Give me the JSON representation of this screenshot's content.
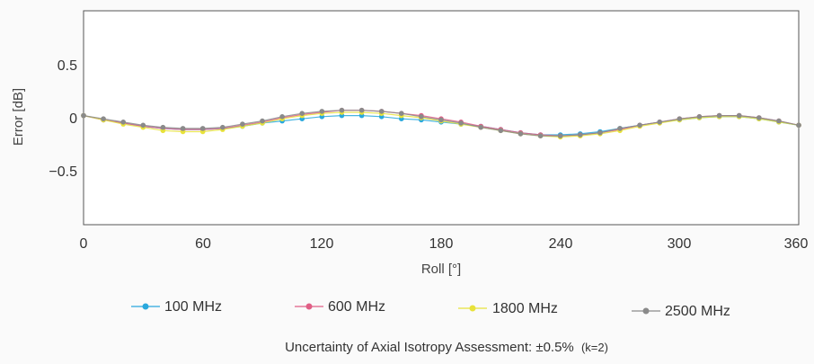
{
  "chart_data": {
    "type": "line",
    "title": "",
    "xlabel": "Roll [°]",
    "ylabel": "Error [dB]",
    "xlim": [
      0,
      360
    ],
    "ylim": [
      -1,
      1
    ],
    "xticks": [
      0,
      60,
      120,
      180,
      240,
      300,
      360
    ],
    "xtick_labels": [
      "0",
      "60",
      "120",
      "180",
      "240",
      "300",
      "360"
    ],
    "yticks": [
      0.5,
      0,
      -0.5
    ],
    "ytick_labels": [
      "0.5",
      "0",
      "−0.5"
    ],
    "grid": false,
    "legend_position": "bottom",
    "x": [
      0,
      10,
      20,
      30,
      40,
      50,
      60,
      70,
      80,
      90,
      100,
      110,
      120,
      130,
      140,
      150,
      160,
      170,
      180,
      190,
      200,
      210,
      220,
      230,
      240,
      250,
      260,
      270,
      280,
      290,
      300,
      310,
      320,
      330,
      340,
      350,
      360
    ],
    "series": [
      {
        "name": "100 MHz",
        "color": "#29a8dd",
        "values": [
          0.02,
          -0.02,
          -0.05,
          -0.08,
          -0.1,
          -0.11,
          -0.11,
          -0.1,
          -0.08,
          -0.05,
          -0.03,
          -0.01,
          0.01,
          0.02,
          0.02,
          0.01,
          -0.01,
          -0.02,
          -0.04,
          -0.06,
          -0.08,
          -0.11,
          -0.14,
          -0.16,
          -0.16,
          -0.15,
          -0.13,
          -0.1,
          -0.07,
          -0.04,
          -0.02,
          0.0,
          0.01,
          0.01,
          -0.01,
          -0.04,
          -0.07
        ]
      },
      {
        "name": "600 MHz",
        "color": "#e05f86",
        "values": [
          0.02,
          -0.02,
          -0.05,
          -0.08,
          -0.1,
          -0.11,
          -0.11,
          -0.1,
          -0.07,
          -0.04,
          0.0,
          0.03,
          0.05,
          0.07,
          0.07,
          0.06,
          0.04,
          0.02,
          -0.01,
          -0.04,
          -0.08,
          -0.11,
          -0.14,
          -0.16,
          -0.17,
          -0.16,
          -0.14,
          -0.11,
          -0.07,
          -0.04,
          -0.01,
          0.01,
          0.02,
          0.02,
          0.0,
          -0.03,
          -0.07
        ]
      },
      {
        "name": "1800 MHz",
        "color": "#e8e23a",
        "values": [
          0.02,
          -0.02,
          -0.06,
          -0.09,
          -0.12,
          -0.13,
          -0.13,
          -0.11,
          -0.08,
          -0.05,
          -0.01,
          0.02,
          0.04,
          0.05,
          0.05,
          0.04,
          0.02,
          0.0,
          -0.03,
          -0.06,
          -0.09,
          -0.12,
          -0.15,
          -0.17,
          -0.18,
          -0.17,
          -0.15,
          -0.12,
          -0.08,
          -0.05,
          -0.02,
          0.0,
          0.01,
          0.01,
          -0.01,
          -0.04,
          -0.07
        ]
      },
      {
        "name": "2500 MHz",
        "color": "#8a8a8a",
        "values": [
          0.02,
          -0.01,
          -0.04,
          -0.07,
          -0.09,
          -0.1,
          -0.1,
          -0.09,
          -0.06,
          -0.03,
          0.01,
          0.04,
          0.06,
          0.07,
          0.07,
          0.06,
          0.04,
          0.01,
          -0.02,
          -0.05,
          -0.09,
          -0.12,
          -0.15,
          -0.17,
          -0.17,
          -0.16,
          -0.14,
          -0.1,
          -0.07,
          -0.04,
          -0.01,
          0.01,
          0.02,
          0.02,
          0.0,
          -0.03,
          -0.07
        ]
      }
    ]
  },
  "caption": {
    "main": "Uncertainty of Axial Isotropy Assessment: ±0.5%",
    "k": "(k=2)"
  }
}
